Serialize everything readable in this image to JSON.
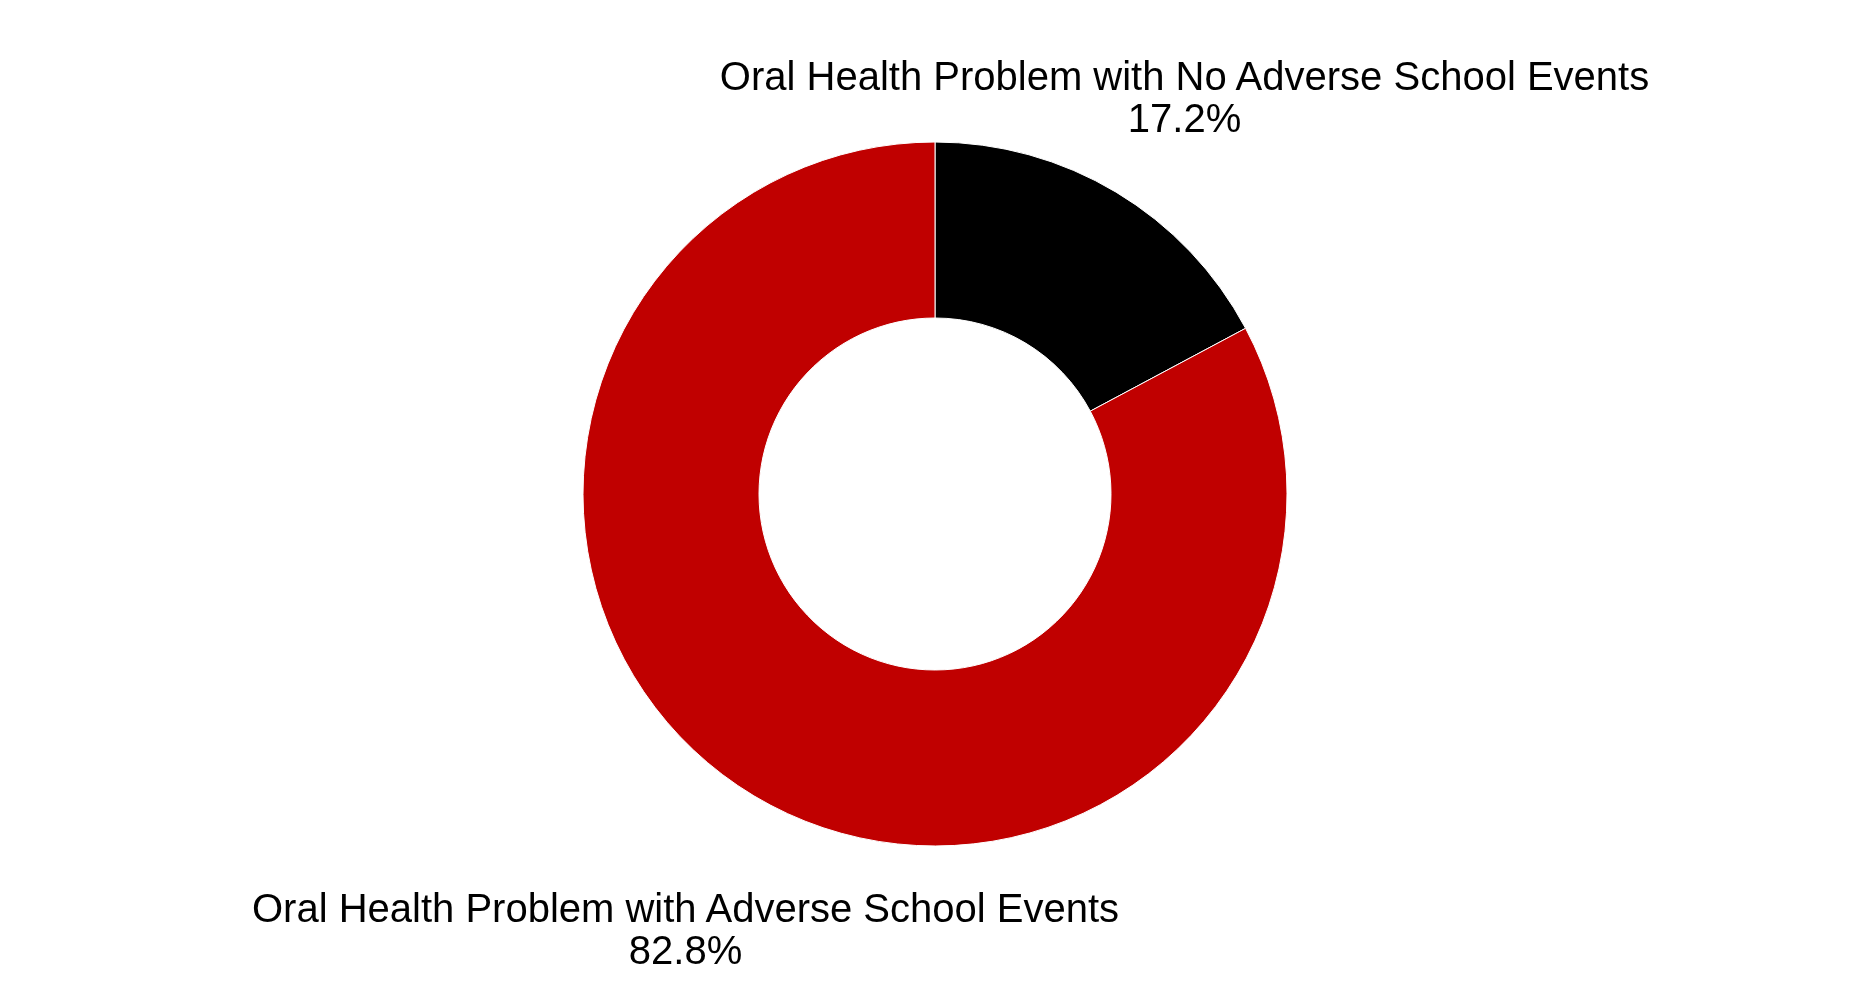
{
  "chart_data": {
    "type": "donut",
    "categories": [
      "Oral Health Problem with No Adverse School Events",
      "Oral Health Problem with Adverse School Events"
    ],
    "values": [
      17.2,
      82.8
    ],
    "colors": [
      "#000000",
      "#c00000"
    ],
    "value_labels": [
      "17.2%",
      "82.8%"
    ],
    "legend": false
  }
}
